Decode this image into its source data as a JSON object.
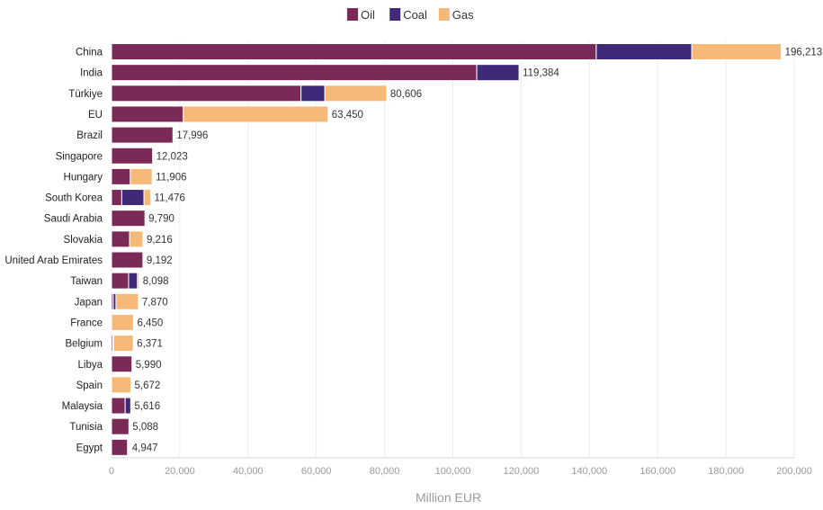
{
  "chart_data": {
    "type": "bar",
    "orientation": "horizontal",
    "stacked": true,
    "xlabel": "Million EUR",
    "xlim": [
      0,
      200000
    ],
    "x_ticks": [
      "0",
      "20,000",
      "40,000",
      "60,000",
      "80,000",
      "100,000",
      "120,000",
      "140,000",
      "160,000",
      "180,000",
      "200,000"
    ],
    "x_tick_values": [
      0,
      20000,
      40000,
      60000,
      80000,
      100000,
      120000,
      140000,
      160000,
      180000,
      200000
    ],
    "grid": true,
    "legend_position": "top-center",
    "categories": [
      "China",
      "India",
      "Türkiye",
      "EU",
      "Brazil",
      "Singapore",
      "Hungary",
      "South Korea",
      "Saudi Arabia",
      "Slovakia",
      "United Arab Emirates",
      "Taiwan",
      "Japan",
      "France",
      "Belgium",
      "Libya",
      "Spain",
      "Malaysia",
      "Tunisia",
      "Egypt"
    ],
    "series": [
      {
        "name": "Oil",
        "color": "#7b2a57",
        "values": [
          142000,
          107000,
          55500,
          21000,
          17996,
          12023,
          5500,
          3000,
          9790,
          5300,
          9192,
          5000,
          500,
          0,
          400,
          5990,
          0,
          4000,
          5088,
          4700
        ]
      },
      {
        "name": "Coal",
        "color": "#3f2a7a",
        "values": [
          28000,
          12384,
          7000,
          0,
          0,
          0,
          0,
          6500,
          0,
          0,
          0,
          2600,
          800,
          0,
          200,
          0,
          0,
          1616,
          0,
          247
        ]
      },
      {
        "name": "Gas",
        "color": "#f7b977",
        "values": [
          26213,
          0,
          18106,
          42450,
          0,
          0,
          6406,
          1976,
          0,
          3916,
          0,
          498,
          6570,
          6450,
          5771,
          0,
          5672,
          0,
          0,
          0
        ]
      }
    ],
    "totals": [
      "196,213",
      "119,384",
      "80,606",
      "63,450",
      "17,996",
      "12,023",
      "11,906",
      "11,476",
      "9,790",
      "9,216",
      "9,192",
      "8,098",
      "7,870",
      "6,450",
      "6,371",
      "5,990",
      "5,672",
      "5,616",
      "5,088",
      "4,947"
    ]
  }
}
